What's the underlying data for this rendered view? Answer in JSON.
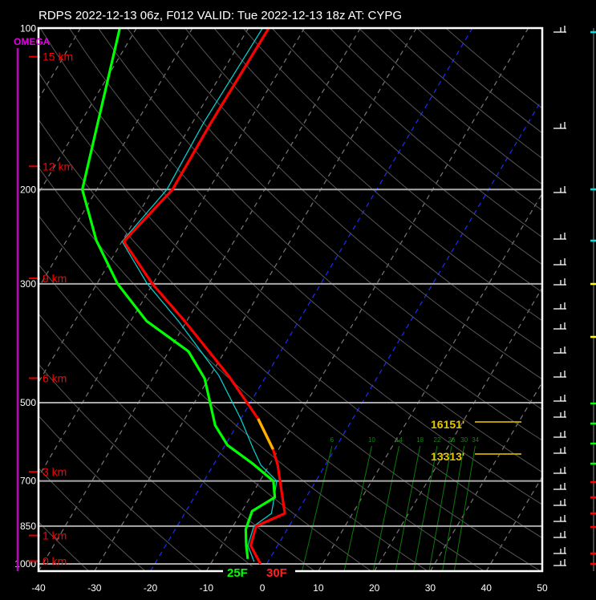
{
  "title": "RDPS 2022-12-13 06z, F012  VALID: Tue 2022-12-13 18z  AT: CYPG",
  "omega_label": "OMEGA",
  "chart_data": {
    "type": "line",
    "subtype": "skew-t log-p",
    "xlim": [
      -40,
      50
    ],
    "ylim_hpa": [
      1000,
      100
    ],
    "y_scale": "log",
    "x_ticks": [
      "-40",
      "-30",
      "-20",
      "-10",
      "0",
      "10",
      "20",
      "30",
      "40",
      "50"
    ],
    "pressure_ticks": [
      "100",
      "200",
      "300",
      "500",
      "700",
      "850",
      "1000"
    ],
    "height_labels": [
      {
        "label": "15 km",
        "p": 113
      },
      {
        "label": "12 km",
        "p": 181
      },
      {
        "label": "9 km",
        "p": 293
      },
      {
        "label": "6 km",
        "p": 450
      },
      {
        "label": "3 km",
        "p": 673
      },
      {
        "label": "1 km",
        "p": 885
      },
      {
        "label": "0 km",
        "p": 988
      }
    ],
    "mixing_ratio_labels": [
      "6",
      "10",
      "14",
      "18",
      "22",
      "26",
      "30",
      "34"
    ],
    "highlighted_isotherms_c": [
      0,
      -20
    ],
    "surface_dewpoint_label": "25F",
    "surface_temp_label": "30F",
    "level_annotations": [
      {
        "label": "16151'",
        "p": 545
      },
      {
        "label": "13313'",
        "p": 620
      }
    ],
    "series": [
      {
        "color": "#ff0000",
        "p": [
          100,
          150,
          200,
          250,
          300,
          352,
          445,
          536,
          611,
          654,
          700,
          805,
          850,
          924,
          1000
        ],
        "t": [
          -56.4,
          -56.7,
          -56.5,
          -59.7,
          -50.1,
          -40.4,
          -26.8,
          -16.9,
          -11,
          -8.5,
          -6.4,
          -2.1,
          -5.9,
          -4.8,
          -1.1
        ]
      },
      {
        "color": "#00ff00",
        "p": [
          100,
          200,
          249,
          300,
          352,
          401,
          451,
          551,
          600,
          650,
          700,
          751,
          797,
          862,
          924,
          979
        ],
        "t": [
          -83,
          -72.6,
          -64.7,
          -56.3,
          -47.2,
          -36.5,
          -30.7,
          -23.9,
          -19.6,
          -13.1,
          -7.6,
          -5.6,
          -8.2,
          -7.4,
          -5.6,
          -3.9
        ]
      },
      {
        "color": "#00d8d8",
        "p": [
          100,
          150,
          200,
          250,
          300,
          352,
          445,
          536,
          611,
          654,
          700,
          760,
          805,
          850,
          924,
          990
        ],
        "t": [
          -57.5,
          -58,
          -57.5,
          -60,
          -51,
          -41.5,
          -28.5,
          -20,
          -14.5,
          -11.5,
          -7,
          -5.5,
          -4.5,
          -6.3,
          -5.3,
          -2.5
        ]
      }
    ],
    "yellow_segment_p": [
      536,
      611
    ],
    "grid": true
  }
}
